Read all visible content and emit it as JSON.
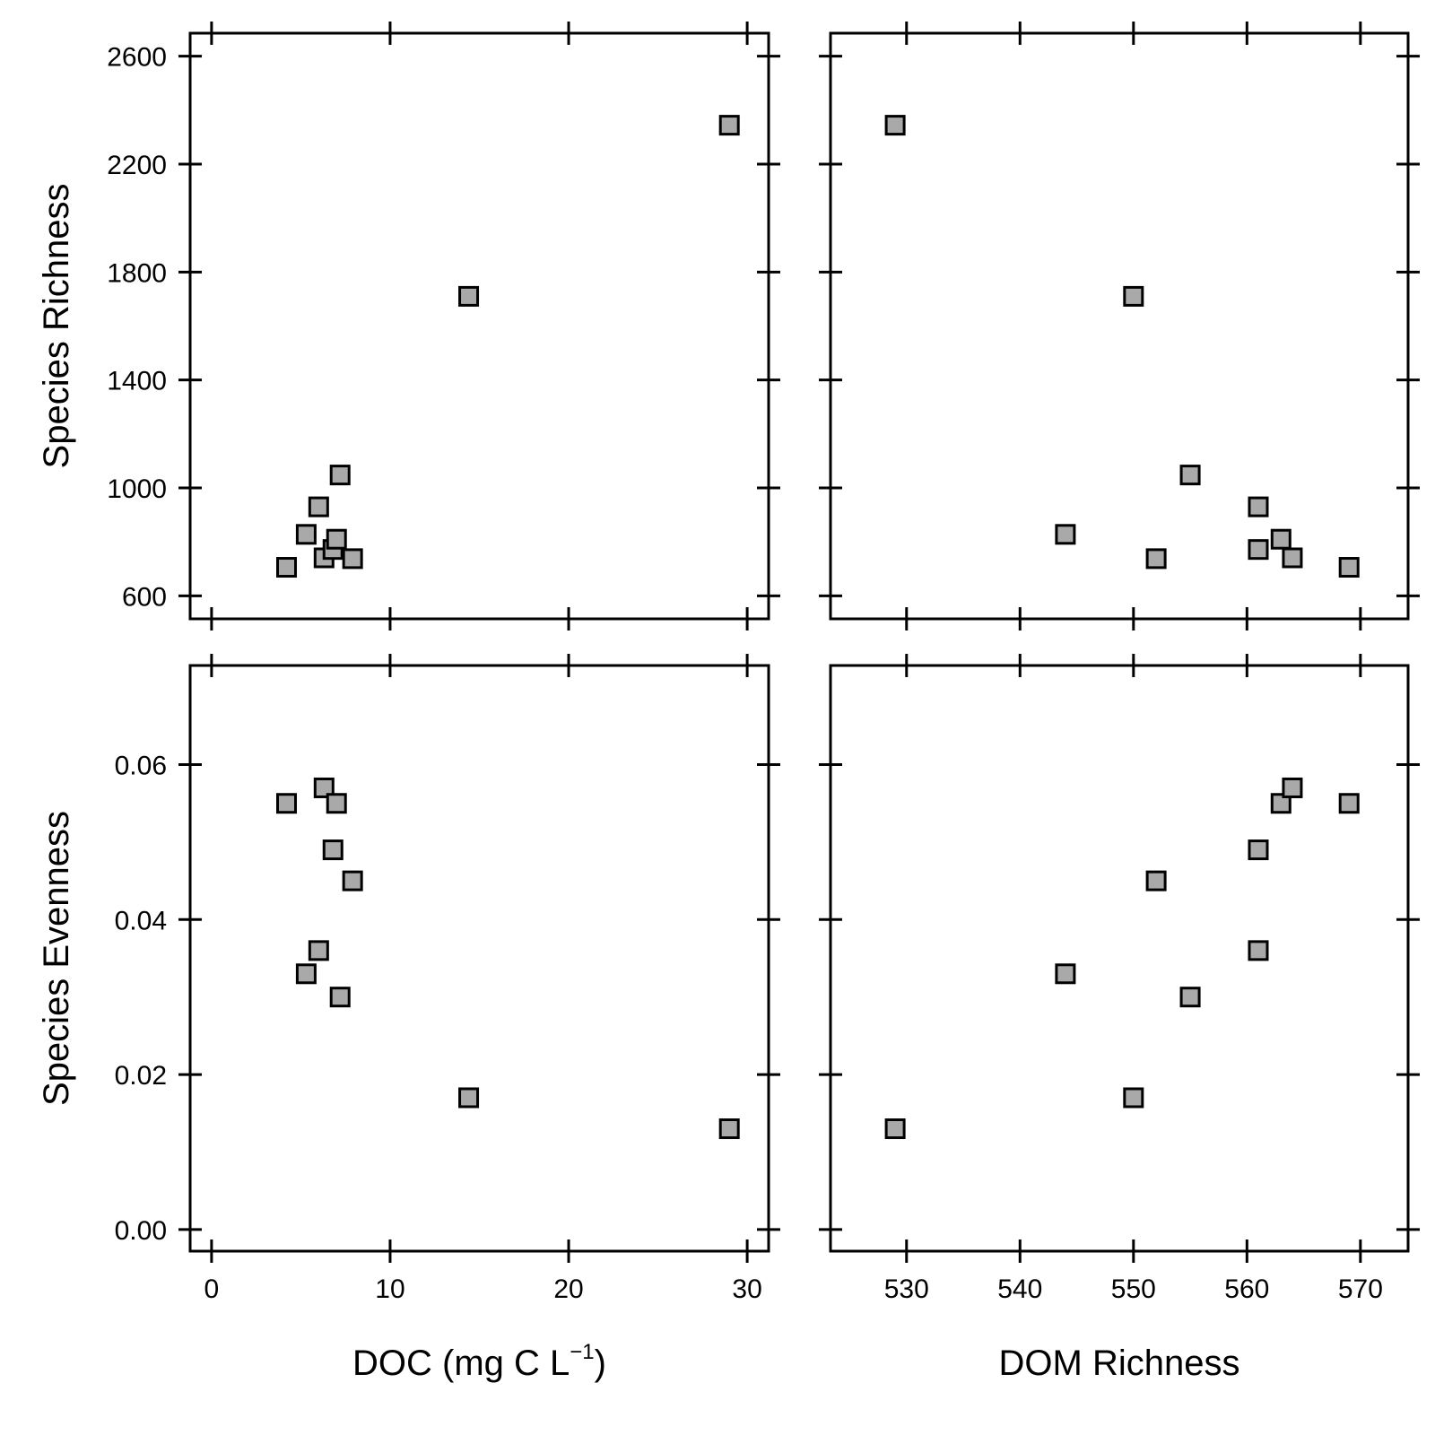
{
  "chart_data": [
    {
      "type": "scatter",
      "panel": "top-left",
      "xlabel": "",
      "ylabel": "Species Richness",
      "xlim": [
        -1.2,
        31.2
      ],
      "ylim": [
        515,
        2685
      ],
      "xticks": [
        0,
        10,
        20,
        30
      ],
      "yticks": [
        600,
        1000,
        1400,
        1800,
        2200,
        2600
      ],
      "show_xtick_labels": false,
      "show_ytick_labels": true,
      "marker_color": "#a9a9a9",
      "points": [
        {
          "x": 4.2,
          "y": 706
        },
        {
          "x": 5.3,
          "y": 828
        },
        {
          "x": 6.0,
          "y": 930
        },
        {
          "x": 6.3,
          "y": 741
        },
        {
          "x": 6.8,
          "y": 772
        },
        {
          "x": 7.0,
          "y": 810
        },
        {
          "x": 7.2,
          "y": 1048
        },
        {
          "x": 7.9,
          "y": 738
        },
        {
          "x": 14.4,
          "y": 1710
        },
        {
          "x": 29.0,
          "y": 2344
        }
      ]
    },
    {
      "type": "scatter",
      "panel": "top-right",
      "xlabel": "",
      "ylabel": "",
      "xlim": [
        523.3,
        574.2
      ],
      "ylim": [
        515,
        2685
      ],
      "xticks": [
        530,
        540,
        550,
        560,
        570
      ],
      "yticks": [
        600,
        1000,
        1400,
        1800,
        2200,
        2600
      ],
      "show_xtick_labels": false,
      "show_ytick_labels": false,
      "marker_color": "#a9a9a9",
      "points": [
        {
          "x": 529,
          "y": 2344
        },
        {
          "x": 544,
          "y": 828
        },
        {
          "x": 550,
          "y": 1710
        },
        {
          "x": 552,
          "y": 738
        },
        {
          "x": 555,
          "y": 1048
        },
        {
          "x": 561,
          "y": 930
        },
        {
          "x": 561,
          "y": 772
        },
        {
          "x": 563,
          "y": 810
        },
        {
          "x": 564,
          "y": 741
        },
        {
          "x": 569,
          "y": 706
        }
      ]
    },
    {
      "type": "scatter",
      "panel": "bottom-left",
      "xlabel": "DOC (mg C L",
      "xlabel_sup": "−1",
      "xlabel_suffix": ")",
      "ylabel": "Species Evenness",
      "xlim": [
        -1.2,
        31.2
      ],
      "ylim": [
        -0.0028,
        0.0728
      ],
      "xticks": [
        0,
        10,
        20,
        30
      ],
      "xtick_labels": [
        "0",
        "10",
        "20",
        "30"
      ],
      "yticks": [
        0.0,
        0.02,
        0.04,
        0.06
      ],
      "ytick_labels": [
        "0.00",
        "0.02",
        "0.04",
        "0.06"
      ],
      "show_xtick_labels": true,
      "show_ytick_labels": true,
      "marker_color": "#a9a9a9",
      "points": [
        {
          "x": 4.2,
          "y": 0.055
        },
        {
          "x": 5.3,
          "y": 0.033
        },
        {
          "x": 6.0,
          "y": 0.036
        },
        {
          "x": 6.3,
          "y": 0.057
        },
        {
          "x": 6.8,
          "y": 0.049
        },
        {
          "x": 7.0,
          "y": 0.055
        },
        {
          "x": 7.2,
          "y": 0.03
        },
        {
          "x": 7.9,
          "y": 0.045
        },
        {
          "x": 14.4,
          "y": 0.017
        },
        {
          "x": 29.0,
          "y": 0.013
        }
      ]
    },
    {
      "type": "scatter",
      "panel": "bottom-right",
      "xlabel": "DOM Richness",
      "ylabel": "",
      "xlim": [
        523.3,
        574.2
      ],
      "ylim": [
        -0.0028,
        0.0728
      ],
      "xticks": [
        530,
        540,
        550,
        560,
        570
      ],
      "xtick_labels": [
        "530",
        "540",
        "550",
        "560",
        "570"
      ],
      "yticks": [
        0.0,
        0.02,
        0.04,
        0.06
      ],
      "show_xtick_labels": true,
      "show_ytick_labels": false,
      "marker_color": "#a9a9a9",
      "points": [
        {
          "x": 529,
          "y": 0.013
        },
        {
          "x": 544,
          "y": 0.033
        },
        {
          "x": 550,
          "y": 0.017
        },
        {
          "x": 552,
          "y": 0.045
        },
        {
          "x": 555,
          "y": 0.03
        },
        {
          "x": 561,
          "y": 0.036
        },
        {
          "x": 561,
          "y": 0.049
        },
        {
          "x": 563,
          "y": 0.055
        },
        {
          "x": 564,
          "y": 0.057
        },
        {
          "x": 569,
          "y": 0.055
        }
      ]
    }
  ]
}
